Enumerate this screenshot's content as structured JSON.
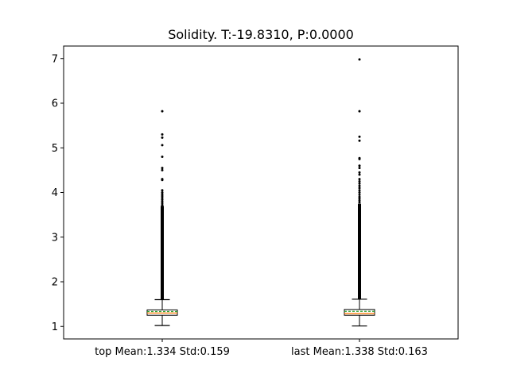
{
  "chart_data": {
    "type": "box",
    "title": "Solidity. T:-19.8310, P:0.0000",
    "xlabel": "",
    "ylabel": "",
    "ylim": [
      0.72,
      7.28
    ],
    "yticks": [
      1,
      2,
      3,
      4,
      5,
      6,
      7
    ],
    "grid": false,
    "legend": "none",
    "mean_line_color": "#2ca02c",
    "median_line_color": "#ff7f0e",
    "box_fill": "#ffffff",
    "categories": [
      "top Mean:1.334 Std:0.159",
      "last Mean:1.338 Std:0.163"
    ],
    "boxes": [
      {
        "name": "top Mean:1.334 Std:0.159",
        "whisker_low": 1.02,
        "q1": 1.25,
        "median": 1.3,
        "mean": 1.334,
        "q3": 1.37,
        "whisker_high": 1.6,
        "outlier_dense_range": [
          1.6,
          3.7
        ],
        "outliers": [
          3.72,
          3.76,
          3.8,
          3.84,
          3.88,
          3.92,
          3.96,
          4.0,
          4.05,
          4.28,
          4.3,
          4.5,
          4.55,
          4.8,
          5.06,
          5.23,
          5.3,
          5.82
        ]
      },
      {
        "name": "last Mean:1.338 Std:0.163",
        "whisker_low": 1.01,
        "q1": 1.25,
        "median": 1.29,
        "mean": 1.338,
        "q3": 1.38,
        "whisker_high": 1.61,
        "outlier_dense_range": [
          1.61,
          3.75
        ],
        "outliers": [
          3.78,
          3.82,
          3.86,
          3.9,
          3.95,
          4.0,
          4.05,
          4.1,
          4.15,
          4.2,
          4.25,
          4.3,
          4.4,
          4.45,
          4.55,
          4.6,
          4.75,
          4.77,
          5.16,
          5.25,
          5.82,
          6.98
        ]
      }
    ]
  }
}
